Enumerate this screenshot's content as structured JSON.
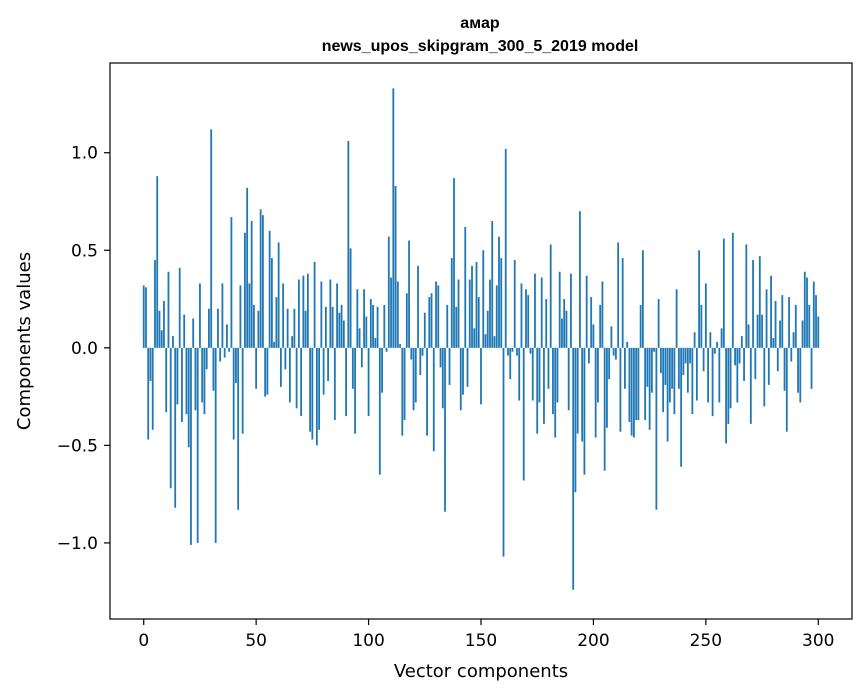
{
  "chart_data": {
    "type": "bar",
    "title_line1": "aмap",
    "title_line2": "news_upos_skipgram_300_5_2019 model",
    "xlabel": "Vector components",
    "ylabel": "Components values",
    "xlim": [
      -15,
      315
    ],
    "ylim": [
      -1.39,
      1.46
    ],
    "xticks": [
      0,
      50,
      100,
      150,
      200,
      250,
      300
    ],
    "xtick_labels": [
      "0",
      "50",
      "100",
      "150",
      "200",
      "250",
      "300"
    ],
    "yticks": [
      -1.0,
      -0.5,
      0.0,
      0.5,
      1.0
    ],
    "ytick_labels": [
      "−1.0",
      "−0.5",
      "0.0",
      "0.5",
      "1.0"
    ],
    "bar_color": "#1f77b4",
    "values": [
      0.32,
      0.31,
      -0.47,
      -0.17,
      -0.42,
      0.45,
      0.88,
      0.19,
      0.09,
      0.24,
      -0.33,
      0.39,
      -0.72,
      0.06,
      -0.82,
      -0.29,
      0.41,
      -0.38,
      0.17,
      -0.34,
      -0.51,
      -1.01,
      0.15,
      -0.32,
      -1.0,
      0.33,
      -0.28,
      -0.34,
      -0.11,
      0.2,
      1.12,
      -0.22,
      -1.0,
      0.2,
      -0.07,
      0.33,
      -0.05,
      0.12,
      -0.02,
      0.67,
      -0.47,
      -0.18,
      -0.83,
      0.32,
      -0.44,
      0.59,
      0.82,
      0.33,
      0.65,
      0.22,
      -0.21,
      0.19,
      0.71,
      0.68,
      -0.25,
      -0.24,
      0.6,
      0.46,
      0.03,
      0.26,
      0.54,
      -0.2,
      0.33,
      -0.11,
      0.2,
      -0.28,
      0.06,
      0.2,
      -0.31,
      0.35,
      -0.35,
      0.37,
      0.19,
      0.38,
      -0.43,
      -0.47,
      0.44,
      -0.5,
      -0.42,
      0.34,
      -0.24,
      0.21,
      -0.17,
      0.35,
      0.21,
      -0.37,
      0.33,
      0.18,
      0.22,
      0.14,
      -0.35,
      1.06,
      0.51,
      -0.21,
      -0.44,
      0.3,
      0.1,
      -0.1,
      0.3,
      0.16,
      -0.35,
      0.25,
      0.22,
      0.05,
      0.21,
      -0.65,
      -0.23,
      0.22,
      -0.02,
      0.57,
      0.36,
      1.33,
      0.83,
      0.34,
      0.02,
      -0.45,
      -0.37,
      0.28,
      0.55,
      -0.06,
      -0.32,
      -0.28,
      0.42,
      -0.14,
      -0.04,
      0.18,
      -0.45,
      0.26,
      0.28,
      -0.53,
      0.34,
      0.32,
      -0.1,
      -0.31,
      -0.84,
      0.22,
      -0.19,
      0.46,
      0.87,
      0.21,
      0.35,
      -0.32,
      -0.24,
      0.62,
      -0.2,
      0.35,
      0.42,
      0.1,
      0.44,
      0.26,
      -0.29,
      0.5,
      0.07,
      0.19,
      0.35,
      0.65,
      0.06,
      0.32,
      0.57,
      0.46,
      -1.07,
      1.02,
      -0.04,
      -0.16,
      -0.02,
      0.45,
      -0.04,
      -0.27,
      0.33,
      -0.68,
      0.3,
      0.27,
      -0.03,
      -0.27,
      0.38,
      -0.44,
      -0.28,
      0.36,
      -0.39,
      0.25,
      -0.21,
      0.53,
      -0.34,
      -0.46,
      -0.28,
      0.39,
      0.15,
      0.25,
      0.19,
      -0.32,
      0.38,
      -1.24,
      -0.74,
      -0.44,
      0.7,
      -0.48,
      -0.65,
      0.37,
      -0.08,
      0.26,
      0.12,
      -0.46,
      -0.28,
      0.22,
      0.34,
      -0.63,
      -0.41,
      -0.16,
      0.11,
      -0.04,
      -0.06,
      0.54,
      -0.43,
      0.46,
      -0.21,
      0.03,
      -0.38,
      -0.45,
      -0.46,
      -0.37,
      -0.37,
      0.22,
      0.5,
      -0.37,
      -0.2,
      -0.42,
      -0.23,
      -0.02,
      -0.83,
      0.25,
      -0.13,
      -0.33,
      -0.19,
      -0.48,
      -0.28,
      -0.21,
      -0.34,
      0.3,
      -0.21,
      -0.61,
      -0.14,
      -0.08,
      -0.23,
      -0.08,
      -0.34,
      0.08,
      -0.27,
      0.5,
      0.22,
      -0.12,
      0.33,
      -0.28,
      0.08,
      -0.35,
      -0.03,
      0.03,
      -0.28,
      0.1,
      0.56,
      -0.49,
      -0.39,
      -0.31,
      0.59,
      -0.09,
      -0.28,
      -0.08,
      0.06,
      -0.17,
      0.53,
      0.12,
      -0.39,
      0.45,
      -0.16,
      0.17,
      0.47,
      0.17,
      -0.3,
      0.3,
      -0.19,
      0.37,
      0.05,
      0.24,
      -0.12,
      0.14,
      0.27,
      -0.22,
      -0.43,
      0.26,
      -0.07,
      0.08,
      0.22,
      -0.23,
      -0.28,
      0.14,
      0.39,
      0.36,
      0.22,
      -0.21,
      0.34,
      0.27,
      0.16
    ]
  }
}
